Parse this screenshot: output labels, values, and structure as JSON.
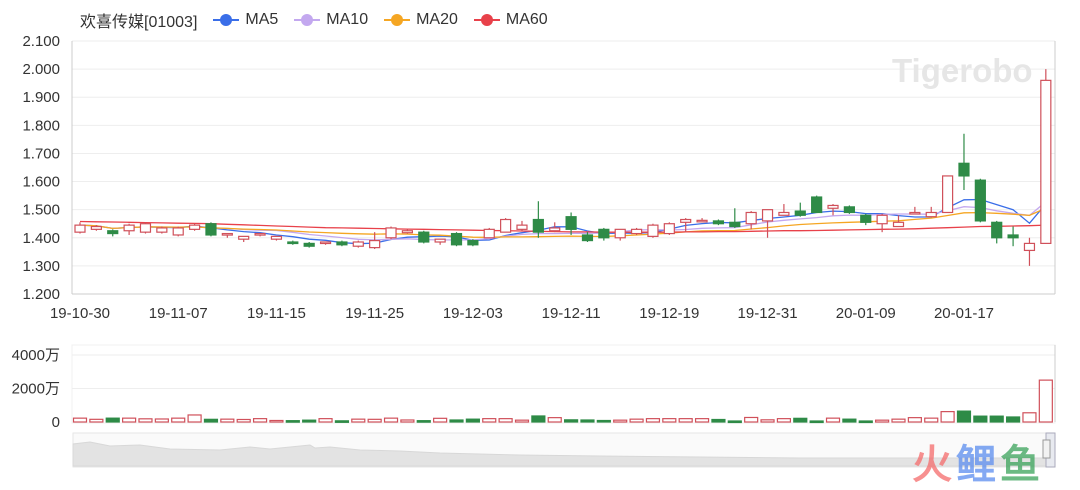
{
  "legend": {
    "title": "欢喜传媒[01003]",
    "items": [
      {
        "label": "MA5",
        "color": "#3a6ee8"
      },
      {
        "label": "MA10",
        "color": "#c3a8ef"
      },
      {
        "label": "MA20",
        "color": "#f5a623"
      },
      {
        "label": "MA60",
        "color": "#e8414a"
      }
    ]
  },
  "watermark": "Tigerobo",
  "logo": {
    "chars": [
      "火",
      "鲤",
      "鱼"
    ],
    "colors": [
      "#f56c6c",
      "#5b8def",
      "#3aa35a"
    ]
  },
  "colors": {
    "up": "#d0505a",
    "down": "#2e8b47",
    "grid": "#eeeeee",
    "axis": "#cccccc",
    "navigator": "#e3e3e3"
  },
  "chart_data": [
    {
      "type": "candlestick",
      "title": "欢喜传媒[01003]",
      "ylim": [
        1.2,
        2.1
      ],
      "yticks": [
        "1.200",
        "1.300",
        "1.400",
        "1.500",
        "1.600",
        "1.700",
        "1.800",
        "1.900",
        "2.000",
        "2.100"
      ],
      "xtick_labels": [
        {
          "index": 0,
          "label": "19-10-30"
        },
        {
          "index": 6,
          "label": "19-11-07"
        },
        {
          "index": 12,
          "label": "19-11-15"
        },
        {
          "index": 18,
          "label": "19-11-25"
        },
        {
          "index": 24,
          "label": "19-12-03"
        },
        {
          "index": 30,
          "label": "19-12-11"
        },
        {
          "index": 36,
          "label": "19-12-19"
        },
        {
          "index": 42,
          "label": "19-12-31"
        },
        {
          "index": 48,
          "label": "20-01-09"
        },
        {
          "index": 54,
          "label": "20-01-17"
        }
      ],
      "ohlc": [
        [
          1.42,
          1.445,
          1.455,
          1.415
        ],
        [
          1.43,
          1.44,
          1.445,
          1.425
        ],
        [
          1.425,
          1.415,
          1.43,
          1.405
        ],
        [
          1.425,
          1.445,
          1.45,
          1.41
        ],
        [
          1.42,
          1.45,
          1.455,
          1.415
        ],
        [
          1.42,
          1.435,
          1.44,
          1.415
        ],
        [
          1.41,
          1.435,
          1.44,
          1.405
        ],
        [
          1.43,
          1.445,
          1.45,
          1.425
        ],
        [
          1.45,
          1.41,
          1.455,
          1.405
        ],
        [
          1.41,
          1.415,
          1.415,
          1.4
        ],
        [
          1.395,
          1.405,
          1.405,
          1.385
        ],
        [
          1.41,
          1.415,
          1.415,
          1.405
        ],
        [
          1.395,
          1.405,
          1.405,
          1.39
        ],
        [
          1.385,
          1.38,
          1.39,
          1.375
        ],
        [
          1.38,
          1.37,
          1.385,
          1.365
        ],
        [
          1.38,
          1.385,
          1.385,
          1.375
        ],
        [
          1.385,
          1.375,
          1.39,
          1.37
        ],
        [
          1.37,
          1.385,
          1.39,
          1.365
        ],
        [
          1.365,
          1.39,
          1.42,
          1.36
        ],
        [
          1.4,
          1.435,
          1.44,
          1.395
        ],
        [
          1.418,
          1.425,
          1.43,
          1.415
        ],
        [
          1.42,
          1.385,
          1.425,
          1.38
        ],
        [
          1.385,
          1.395,
          1.395,
          1.375
        ],
        [
          1.415,
          1.375,
          1.42,
          1.37
        ],
        [
          1.39,
          1.375,
          1.395,
          1.37
        ],
        [
          1.4,
          1.43,
          1.435,
          1.4
        ],
        [
          1.42,
          1.465,
          1.47,
          1.42
        ],
        [
          1.43,
          1.445,
          1.46,
          1.425
        ],
        [
          1.465,
          1.42,
          1.53,
          1.4
        ],
        [
          1.425,
          1.435,
          1.455,
          1.42
        ],
        [
          1.475,
          1.43,
          1.49,
          1.41
        ],
        [
          1.41,
          1.39,
          1.42,
          1.385
        ],
        [
          1.43,
          1.4,
          1.435,
          1.39
        ],
        [
          1.4,
          1.43,
          1.43,
          1.39
        ],
        [
          1.415,
          1.43,
          1.435,
          1.41
        ],
        [
          1.405,
          1.445,
          1.45,
          1.4
        ],
        [
          1.415,
          1.45,
          1.455,
          1.41
        ],
        [
          1.455,
          1.465,
          1.47,
          1.42
        ],
        [
          1.458,
          1.462,
          1.47,
          1.455
        ],
        [
          1.46,
          1.45,
          1.465,
          1.445
        ],
        [
          1.455,
          1.44,
          1.505,
          1.435
        ],
        [
          1.45,
          1.49,
          1.495,
          1.43
        ],
        [
          1.46,
          1.5,
          1.5,
          1.4
        ],
        [
          1.48,
          1.49,
          1.52,
          1.48
        ],
        [
          1.495,
          1.48,
          1.525,
          1.475
        ],
        [
          1.545,
          1.49,
          1.55,
          1.49
        ],
        [
          1.505,
          1.515,
          1.52,
          1.48
        ],
        [
          1.51,
          1.49,
          1.515,
          1.485
        ],
        [
          1.48,
          1.455,
          1.485,
          1.445
        ],
        [
          1.45,
          1.48,
          1.485,
          1.42
        ],
        [
          1.44,
          1.455,
          1.48,
          1.44
        ],
        [
          1.485,
          1.49,
          1.51,
          1.485
        ],
        [
          1.475,
          1.49,
          1.51,
          1.475
        ],
        [
          1.49,
          1.62,
          1.62,
          1.49
        ],
        [
          1.665,
          1.62,
          1.77,
          1.57
        ],
        [
          1.605,
          1.46,
          1.61,
          1.455
        ],
        [
          1.455,
          1.4,
          1.46,
          1.38
        ],
        [
          1.41,
          1.4,
          1.44,
          1.37
        ],
        [
          1.355,
          1.38,
          1.4,
          1.3
        ],
        [
          1.38,
          1.96,
          2.0,
          1.38
        ]
      ],
      "ma60": [
        1.458,
        1.457,
        1.456,
        1.455,
        1.454,
        1.453,
        1.452,
        1.451,
        1.45,
        1.448,
        1.446,
        1.444,
        1.442,
        1.44,
        1.438,
        1.436,
        1.435,
        1.434,
        1.433,
        1.432,
        1.431,
        1.43,
        1.429,
        1.428,
        1.427,
        1.426,
        1.425,
        1.424,
        1.423,
        1.422,
        1.421,
        1.421,
        1.42,
        1.42,
        1.42,
        1.42,
        1.42,
        1.421,
        1.421,
        1.422,
        1.422,
        1.423,
        1.424,
        1.425,
        1.425,
        1.426,
        1.427,
        1.428,
        1.429,
        1.43,
        1.431,
        1.432,
        1.434,
        1.436,
        1.438,
        1.44,
        1.441,
        1.442,
        1.443,
        1.445
      ],
      "volume_unit": "万",
      "volume_ylim": [
        0,
        4000
      ],
      "volume_yticks": [
        "0",
        "2000万",
        "4000万"
      ],
      "volume": [
        230,
        160,
        230,
        230,
        190,
        180,
        230,
        420,
        160,
        170,
        150,
        200,
        90,
        80,
        110,
        200,
        70,
        170,
        160,
        230,
        120,
        80,
        220,
        120,
        170,
        200,
        200,
        110,
        360,
        260,
        130,
        120,
        90,
        110,
        170,
        200,
        200,
        200,
        200,
        150,
        60,
        270,
        130,
        200,
        220,
        60,
        230,
        170,
        60,
        110,
        170,
        260,
        230,
        620,
        650,
        350,
        350,
        300,
        550,
        2500
      ]
    }
  ]
}
